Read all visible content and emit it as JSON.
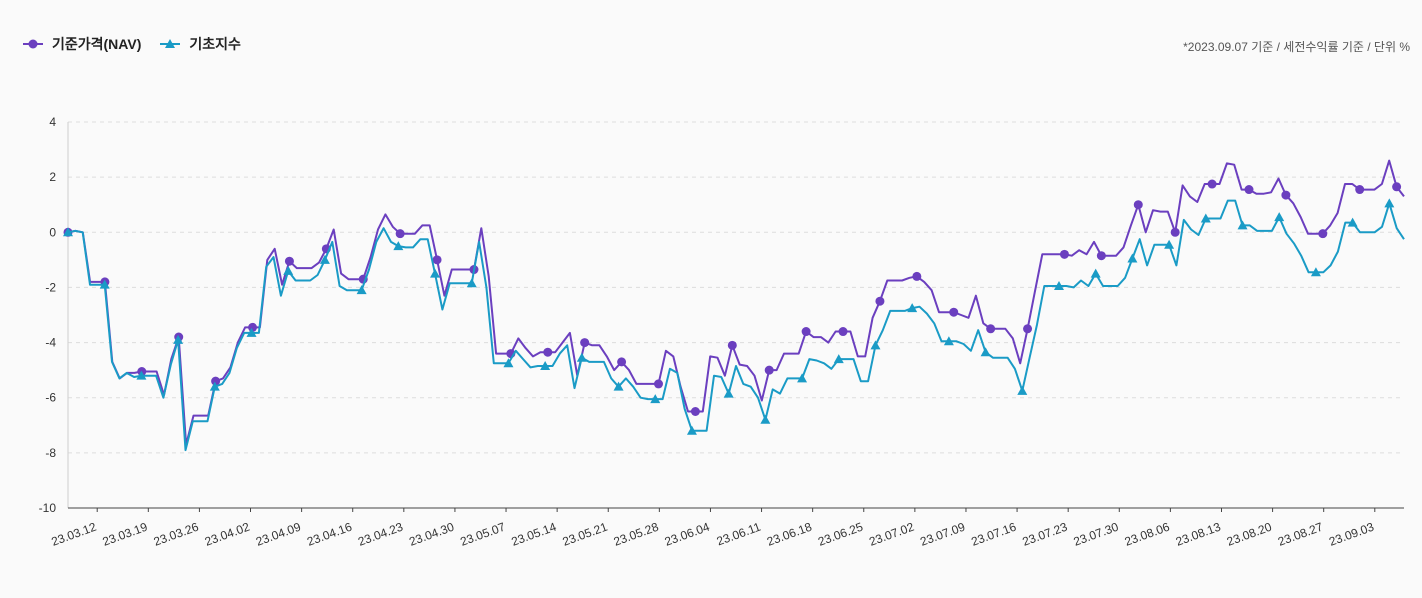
{
  "legend": {
    "nav_label": "기준가격(NAV)",
    "index_label": "기초지수"
  },
  "note": "*2023.09.07 기준 / 세전수익률 기준 / 단위 %",
  "colors": {
    "nav": "#6b3fbf",
    "index": "#1a9bc6",
    "grid": "#dddddd",
    "axis": "#444444"
  },
  "chart_data": {
    "type": "line",
    "title": "",
    "xlabel": "",
    "ylabel": "",
    "ylim": [
      -10,
      4
    ],
    "yticks": [
      4,
      2,
      0,
      -2,
      -4,
      -6,
      -8,
      -10
    ],
    "grid": true,
    "legend_position": "top-left",
    "xticks": [
      "23.03.12",
      "23.03.19",
      "23.03.26",
      "23.04.02",
      "23.04.09",
      "23.04.16",
      "23.04.23",
      "23.04.30",
      "23.05.07",
      "23.05.14",
      "23.05.21",
      "23.05.28",
      "23.06.04",
      "23.06.11",
      "23.06.18",
      "23.06.25",
      "23.07.02",
      "23.07.09",
      "23.07.16",
      "23.07.23",
      "23.07.30",
      "23.08.06",
      "23.08.13",
      "23.08.20",
      "23.08.27",
      "23.09.03"
    ],
    "x_start": "23.03.08",
    "x_end": "23.09.07",
    "series": [
      {
        "name": "기준가격(NAV)",
        "color": "#6b3fbf",
        "marker": "circle",
        "values": [
          0.0,
          0.05,
          0.0,
          -1.8,
          -1.8,
          -1.8,
          -4.7,
          -5.3,
          -5.1,
          -5.1,
          -5.05,
          -5.05,
          -5.05,
          -5.9,
          -4.6,
          -3.8,
          -7.7,
          -6.65,
          -6.65,
          -6.65,
          -5.4,
          -5.3,
          -4.9,
          -4.0,
          -3.45,
          -3.45,
          -3.45,
          -1.0,
          -0.6,
          -1.9,
          -1.05,
          -1.3,
          -1.3,
          -1.3,
          -1.1,
          -0.6,
          0.1,
          -1.5,
          -1.7,
          -1.7,
          -1.7,
          -0.9,
          0.1,
          0.65,
          0.2,
          -0.05,
          -0.05,
          -0.05,
          0.25,
          0.25,
          -1.0,
          -2.3,
          -1.35,
          -1.35,
          -1.35,
          -1.35,
          0.15,
          -1.6,
          -4.4,
          -4.4,
          -4.4,
          -3.85,
          -4.2,
          -4.5,
          -4.35,
          -4.35,
          -4.35,
          -4.0,
          -3.65,
          -5.2,
          -4.0,
          -4.1,
          -4.1,
          -4.5,
          -5.0,
          -4.7,
          -5.0,
          -5.5,
          -5.5,
          -5.5,
          -5.5,
          -4.3,
          -4.5,
          -5.6,
          -6.5,
          -6.5,
          -6.5,
          -4.5,
          -4.55,
          -5.2,
          -4.1,
          -4.8,
          -4.85,
          -5.2,
          -6.1,
          -5.0,
          -5.0,
          -4.4,
          -4.4,
          -4.4,
          -3.6,
          -3.8,
          -3.8,
          -4.0,
          -3.6,
          -3.6,
          -3.6,
          -4.5,
          -4.5,
          -3.1,
          -2.5,
          -1.75,
          -1.75,
          -1.75,
          -1.65,
          -1.6,
          -1.8,
          -2.1,
          -2.9,
          -2.9,
          -2.9,
          -3.0,
          -3.1,
          -2.3,
          -3.3,
          -3.5,
          -3.5,
          -3.5,
          -3.85,
          -4.75,
          -3.5,
          -2.15,
          -0.8,
          -0.8,
          -0.8,
          -0.8,
          -0.85,
          -0.65,
          -0.8,
          -0.35,
          -0.85,
          -0.85,
          -0.85,
          -0.55,
          0.25,
          1.0,
          0.0,
          0.8,
          0.75,
          0.75,
          0.0,
          1.7,
          1.3,
          1.1,
          1.75,
          1.75,
          1.75,
          2.5,
          2.45,
          1.55,
          1.55,
          1.4,
          1.4,
          1.45,
          1.95,
          1.35,
          1.05,
          0.55,
          -0.05,
          -0.05,
          -0.05,
          0.25,
          0.7,
          1.75,
          1.75,
          1.55,
          1.55,
          1.55,
          1.75,
          2.6,
          1.65,
          1.3
        ]
      },
      {
        "name": "기초지수",
        "color": "#1a9bc6",
        "marker": "triangle",
        "values": [
          0.0,
          0.05,
          0.0,
          -1.9,
          -1.9,
          -1.9,
          -4.7,
          -5.3,
          -5.1,
          -5.25,
          -5.2,
          -5.2,
          -5.2,
          -6.0,
          -4.8,
          -3.9,
          -7.9,
          -6.85,
          -6.85,
          -6.85,
          -5.6,
          -5.5,
          -5.1,
          -4.2,
          -3.65,
          -3.65,
          -3.65,
          -1.25,
          -0.9,
          -2.3,
          -1.4,
          -1.75,
          -1.75,
          -1.75,
          -1.55,
          -1.0,
          -0.35,
          -1.95,
          -2.1,
          -2.1,
          -2.1,
          -1.35,
          -0.35,
          0.15,
          -0.35,
          -0.5,
          -0.55,
          -0.55,
          -0.25,
          -0.25,
          -1.5,
          -2.8,
          -1.85,
          -1.85,
          -1.85,
          -1.85,
          -0.35,
          -2.0,
          -4.75,
          -4.75,
          -4.75,
          -4.3,
          -4.6,
          -4.9,
          -4.85,
          -4.85,
          -4.85,
          -4.4,
          -4.1,
          -5.65,
          -4.55,
          -4.7,
          -4.7,
          -4.7,
          -5.3,
          -5.6,
          -5.3,
          -5.6,
          -6.0,
          -6.05,
          -6.05,
          -6.05,
          -4.95,
          -5.1,
          -6.4,
          -7.2,
          -7.2,
          -7.2,
          -5.2,
          -5.25,
          -5.85,
          -4.85,
          -5.5,
          -5.6,
          -6.0,
          -6.8,
          -5.7,
          -5.85,
          -5.3,
          -5.3,
          -5.3,
          -4.6,
          -4.65,
          -4.75,
          -4.95,
          -4.6,
          -4.6,
          -4.6,
          -5.4,
          -5.4,
          -4.1,
          -3.55,
          -2.85,
          -2.85,
          -2.85,
          -2.75,
          -2.7,
          -2.95,
          -3.3,
          -3.95,
          -3.95,
          -3.95,
          -4.05,
          -4.3,
          -3.55,
          -4.35,
          -4.55,
          -4.55,
          -4.55,
          -4.95,
          -5.75,
          -4.55,
          -3.35,
          -1.95,
          -1.95,
          -1.95,
          -1.95,
          -2.0,
          -1.75,
          -1.95,
          -1.5,
          -1.95,
          -1.95,
          -1.95,
          -1.65,
          -0.95,
          -0.25,
          -1.2,
          -0.45,
          -0.45,
          -0.45,
          -1.2,
          0.45,
          0.1,
          -0.1,
          0.5,
          0.5,
          0.5,
          1.15,
          1.15,
          0.25,
          0.25,
          0.05,
          0.05,
          0.05,
          0.55,
          -0.05,
          -0.4,
          -0.85,
          -1.45,
          -1.45,
          -1.45,
          -1.2,
          -0.7,
          0.35,
          0.35,
          0.0,
          0.0,
          0.0,
          0.2,
          1.05,
          0.15,
          -0.25
        ]
      }
    ]
  }
}
